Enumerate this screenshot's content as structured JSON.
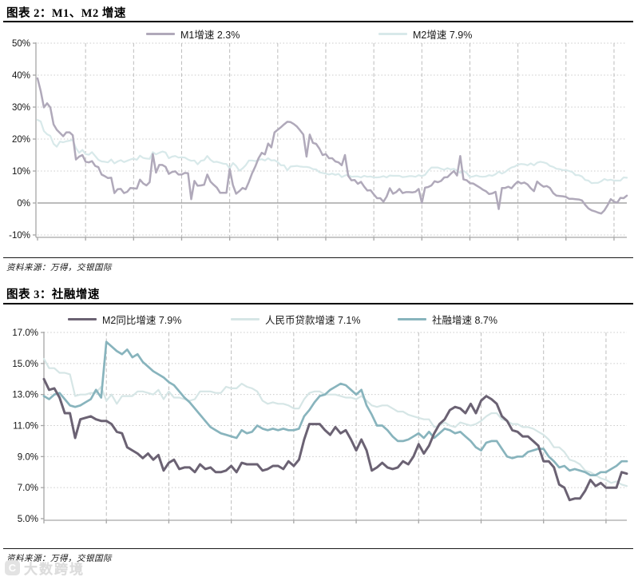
{
  "figure2": {
    "title": "图表 2：M1、M2 增速",
    "source": "资料来源：万得，交银国际",
    "legend": [
      {
        "label": "M1增速 2.3%",
        "color": "#b0a9ba"
      },
      {
        "label": "M2增速 7.9%",
        "color": "#d8e9ea"
      }
    ]
  },
  "figure3": {
    "title": "图表 3：社融增速",
    "source": "资料来源：万得，交银国际",
    "legend": [
      {
        "label": "M2同比增速 7.9%",
        "color": "#6b6273"
      },
      {
        "label": "人民币贷款增速 7.1%",
        "color": "#d6e6e6"
      },
      {
        "label": "社融增速 8.7%",
        "color": "#88b4bd"
      }
    ]
  },
  "watermark": {
    "logo": "C",
    "text": "大数跨境"
  },
  "chart_data": [
    {
      "type": "line",
      "title": "图表 2：M1、M2 增速",
      "x_start": "2010-01",
      "x_freq": "monthly",
      "x_ticks": [
        "2010-01",
        "2011-04",
        "2012-07",
        "2013-10",
        "2015-01",
        "2016-04",
        "2017-07",
        "2018-10",
        "2020-01",
        "2021-04",
        "2022-07",
        "2023-10",
        "2025-01"
      ],
      "x_tick_interval_months": 15,
      "ylim": [
        -10,
        50
      ],
      "y_ticks": [
        {
          "label": "50%",
          "value": 50
        },
        {
          "label": "40%",
          "value": 40
        },
        {
          "label": "30%",
          "value": 30
        },
        {
          "label": "20%",
          "value": 20
        },
        {
          "label": "10%",
          "value": 10
        },
        {
          "label": "0%",
          "value": 0
        },
        {
          "label": "-10%",
          "value": -10
        }
      ],
      "grid": true,
      "zero_line": true,
      "legend_position": "top",
      "series": [
        {
          "name": "M2增速 7.9%",
          "color": "#d8e9ea",
          "stroke_width": 2.2,
          "values": [
            26.0,
            25.5,
            22.5,
            21.5,
            21.0,
            18.5,
            17.6,
            19.2,
            19.0,
            19.3,
            19.5,
            19.7,
            17.2,
            15.7,
            16.6,
            15.3,
            15.1,
            15.9,
            14.7,
            13.5,
            13.0,
            12.9,
            12.7,
            13.6,
            12.4,
            13.0,
            13.4,
            12.8,
            13.2,
            13.6,
            13.9,
            13.5,
            14.8,
            14.1,
            13.9,
            13.8,
            15.9,
            15.2,
            15.7,
            16.1,
            15.8,
            14.0,
            14.5,
            14.7,
            14.2,
            14.3,
            14.2,
            13.6,
            13.2,
            13.3,
            12.1,
            13.2,
            13.4,
            14.7,
            13.5,
            12.8,
            12.9,
            12.6,
            12.3,
            12.2,
            10.8,
            12.5,
            11.6,
            10.1,
            10.8,
            11.8,
            13.3,
            13.3,
            13.1,
            13.5,
            13.7,
            13.3,
            14.0,
            13.3,
            13.4,
            12.8,
            11.8,
            11.8,
            10.2,
            11.4,
            11.5,
            11.6,
            11.4,
            11.3,
            11.3,
            11.1,
            10.6,
            10.5,
            9.6,
            9.4,
            9.2,
            8.9,
            9.2,
            8.8,
            9.1,
            8.1,
            8.6,
            8.8,
            8.2,
            8.3,
            8.3,
            8.0,
            8.5,
            8.2,
            8.3,
            8.0,
            8.0,
            8.1,
            8.4,
            8.0,
            8.6,
            8.5,
            8.5,
            8.5,
            8.1,
            8.2,
            8.4,
            8.4,
            8.2,
            8.7,
            8.4,
            8.8,
            10.1,
            11.1,
            11.1,
            11.1,
            10.7,
            10.4,
            10.9,
            10.5,
            10.7,
            10.1,
            9.4,
            10.1,
            9.4,
            8.1,
            8.3,
            8.6,
            8.3,
            8.2,
            8.3,
            8.7,
            8.5,
            9.0,
            9.8,
            9.2,
            9.7,
            10.5,
            11.1,
            11.4,
            12.0,
            12.2,
            12.1,
            11.8,
            12.4,
            11.8,
            12.6,
            12.9,
            12.7,
            12.4,
            11.6,
            11.3,
            10.7,
            10.6,
            10.3,
            10.3,
            10.0,
            9.7,
            8.7,
            8.7,
            8.3,
            7.2,
            7.0,
            6.2,
            6.3,
            6.3,
            6.8,
            7.5,
            7.1,
            7.3,
            7.0,
            7.0,
            7.0,
            8.0,
            7.9
          ]
        },
        {
          "name": "M1增速 2.3%",
          "color": "#b0a9ba",
          "stroke_width": 2.5,
          "values": [
            39.0,
            35.0,
            29.9,
            31.2,
            29.9,
            24.6,
            22.9,
            21.9,
            20.9,
            22.1,
            22.1,
            21.2,
            13.6,
            14.5,
            15.0,
            12.9,
            12.7,
            13.1,
            11.6,
            11.2,
            8.9,
            8.4,
            7.8,
            7.9,
            3.1,
            4.3,
            4.4,
            3.1,
            3.5,
            4.7,
            4.6,
            4.5,
            7.3,
            6.1,
            5.5,
            6.5,
            15.3,
            9.5,
            11.9,
            11.9,
            11.3,
            9.1,
            9.7,
            9.9,
            8.9,
            8.9,
            9.4,
            9.3,
            1.2,
            6.9,
            5.4,
            5.5,
            5.7,
            8.9,
            6.7,
            5.7,
            4.8,
            3.2,
            3.2,
            3.2,
            10.6,
            5.6,
            2.9,
            3.7,
            4.7,
            4.3,
            6.6,
            9.3,
            11.4,
            14.0,
            15.7,
            15.2,
            18.6,
            17.4,
            22.1,
            22.9,
            23.7,
            24.6,
            25.4,
            25.3,
            24.7,
            23.9,
            22.7,
            21.4,
            14.5,
            21.4,
            18.8,
            18.5,
            17.0,
            15.0,
            15.3,
            14.0,
            14.0,
            13.0,
            12.7,
            11.8,
            15.0,
            8.5,
            7.1,
            7.2,
            6.0,
            6.6,
            5.1,
            3.9,
            4.0,
            2.7,
            1.5,
            1.5,
            0.4,
            2.0,
            4.6,
            2.9,
            3.4,
            4.4,
            3.1,
            3.4,
            3.4,
            3.3,
            3.5,
            4.4,
            0.0,
            4.8,
            5.0,
            5.5,
            6.8,
            6.5,
            6.9,
            8.0,
            8.1,
            9.1,
            10.0,
            8.6,
            14.7,
            7.4,
            7.1,
            6.2,
            6.1,
            5.5,
            4.9,
            4.2,
            3.7,
            2.8,
            3.0,
            3.5,
            -1.9,
            4.7,
            4.7,
            5.1,
            4.6,
            5.8,
            6.7,
            6.1,
            6.4,
            5.8,
            4.6,
            3.7,
            6.7,
            5.8,
            5.1,
            5.3,
            4.7,
            3.1,
            2.3,
            2.2,
            2.1,
            1.9,
            1.3,
            1.3,
            1.2,
            1.1,
            0.8,
            -0.6,
            -1.7,
            -2.3,
            -2.6,
            -3.0,
            -3.3,
            -2.3,
            -0.7,
            1.2,
            0.4,
            0.1,
            1.6,
            1.5,
            2.3
          ]
        }
      ]
    },
    {
      "type": "line",
      "title": "图表 3：社融增速",
      "x_start": "2016-01",
      "x_freq": "monthly",
      "x_ticks": [
        "2016-01",
        "2017-01",
        "2018-01",
        "2019-01",
        "2020-01",
        "2021-01",
        "2022-01",
        "2023-01",
        "2024-01",
        "2025-01"
      ],
      "x_tick_interval_months": 12,
      "ylim": [
        5,
        17
      ],
      "y_ticks": [
        {
          "label": "17.0%",
          "value": 17
        },
        {
          "label": "15.0%",
          "value": 15
        },
        {
          "label": "13.0%",
          "value": 13
        },
        {
          "label": "11.0%",
          "value": 11
        },
        {
          "label": "9.0%",
          "value": 9
        },
        {
          "label": "7.0%",
          "value": 7
        },
        {
          "label": "5.0%",
          "value": 5
        }
      ],
      "grid": true,
      "zero_line": false,
      "legend_position": "top",
      "series": [
        {
          "name": "人民币贷款增速 7.1%",
          "color": "#d6e6e6",
          "stroke_width": 2.2,
          "values": [
            15.3,
            14.7,
            14.7,
            14.4,
            14.4,
            14.3,
            12.9,
            13.0,
            13.0,
            13.1,
            13.1,
            13.5,
            12.6,
            13.0,
            12.4,
            12.9,
            12.9,
            12.9,
            13.2,
            13.2,
            13.1,
            13.0,
            13.3,
            12.7,
            13.2,
            12.8,
            12.8,
            12.7,
            12.6,
            12.7,
            13.2,
            13.2,
            13.2,
            13.1,
            13.1,
            13.5,
            13.4,
            13.4,
            13.7,
            13.5,
            13.4,
            13.2,
            12.6,
            12.4,
            12.5,
            12.4,
            12.4,
            12.3,
            12.1,
            12.1,
            12.7,
            13.1,
            13.2,
            13.2,
            13.0,
            13.0,
            13.0,
            12.9,
            12.8,
            12.8,
            12.7,
            12.9,
            12.6,
            12.3,
            12.2,
            12.3,
            12.3,
            12.1,
            11.9,
            11.9,
            11.7,
            11.6,
            11.5,
            11.4,
            11.4,
            10.9,
            11.0,
            11.2,
            11.0,
            10.9,
            11.2,
            11.1,
            11.0,
            11.1,
            11.3,
            11.6,
            11.8,
            11.8,
            11.4,
            11.3,
            11.1,
            11.1,
            10.9,
            10.9,
            10.8,
            10.6,
            10.4,
            10.1,
            9.6,
            9.6,
            9.3,
            8.8,
            8.7,
            8.5,
            8.1,
            8.0,
            7.8,
            7.6,
            7.5,
            7.3,
            7.4,
            7.2,
            7.1
          ]
        },
        {
          "name": "社融增速 8.7%",
          "color": "#88b4bd",
          "stroke_width": 2.7,
          "values": [
            12.9,
            12.7,
            13.0,
            13.1,
            12.7,
            12.3,
            12.2,
            12.3,
            12.5,
            12.7,
            13.3,
            12.8,
            16.4,
            16.1,
            15.8,
            15.6,
            15.9,
            15.4,
            15.6,
            15.1,
            14.8,
            14.5,
            14.3,
            14.1,
            13.8,
            13.6,
            13.2,
            12.8,
            12.5,
            12.1,
            11.7,
            11.3,
            10.9,
            10.7,
            10.5,
            10.4,
            10.3,
            10.2,
            10.7,
            10.5,
            10.6,
            11.0,
            10.8,
            10.7,
            10.8,
            10.7,
            10.8,
            10.7,
            10.7,
            10.8,
            11.6,
            12.0,
            12.5,
            12.9,
            13.0,
            13.3,
            13.5,
            13.7,
            13.6,
            13.3,
            13.0,
            13.3,
            12.3,
            11.7,
            11.0,
            11.0,
            10.7,
            10.3,
            10.0,
            10.0,
            10.1,
            10.3,
            10.5,
            10.2,
            10.6,
            10.2,
            10.5,
            10.8,
            10.7,
            10.5,
            10.6,
            10.3,
            10.0,
            9.6,
            9.4,
            9.9,
            10.0,
            10.0,
            9.5,
            9.0,
            8.9,
            9.0,
            9.0,
            9.3,
            9.4,
            9.5,
            9.5,
            9.0,
            8.7,
            8.3,
            8.4,
            8.1,
            8.2,
            8.1,
            8.0,
            7.8,
            7.8,
            8.0,
            8.0,
            8.2,
            8.4,
            8.7,
            8.7
          ]
        },
        {
          "name": "M2同比增速 7.9%",
          "color": "#6b6273",
          "stroke_width": 3.0,
          "values": [
            14.0,
            13.3,
            13.4,
            12.8,
            11.8,
            11.8,
            10.2,
            11.4,
            11.5,
            11.6,
            11.4,
            11.3,
            11.3,
            11.1,
            10.6,
            10.5,
            9.6,
            9.4,
            9.2,
            8.9,
            9.2,
            8.8,
            9.1,
            8.1,
            8.6,
            8.8,
            8.2,
            8.3,
            8.3,
            8.0,
            8.5,
            8.2,
            8.3,
            8.0,
            8.0,
            8.1,
            8.4,
            8.0,
            8.6,
            8.5,
            8.5,
            8.5,
            8.1,
            8.2,
            8.4,
            8.4,
            8.2,
            8.7,
            8.4,
            8.8,
            10.1,
            11.1,
            11.1,
            11.1,
            10.7,
            10.4,
            10.9,
            10.5,
            10.7,
            10.1,
            9.4,
            10.1,
            9.4,
            8.1,
            8.3,
            8.6,
            8.3,
            8.2,
            8.3,
            8.7,
            8.5,
            9.0,
            9.8,
            9.2,
            9.7,
            10.5,
            11.1,
            11.4,
            12.0,
            12.2,
            12.1,
            11.8,
            12.4,
            11.8,
            12.6,
            12.9,
            12.7,
            12.4,
            11.6,
            11.3,
            10.7,
            10.6,
            10.3,
            10.3,
            10.0,
            9.7,
            8.7,
            8.7,
            8.3,
            7.2,
            7.0,
            6.2,
            6.3,
            6.3,
            6.8,
            7.5,
            7.1,
            7.3,
            7.0,
            7.0,
            7.0,
            8.0,
            7.9
          ]
        }
      ]
    }
  ]
}
